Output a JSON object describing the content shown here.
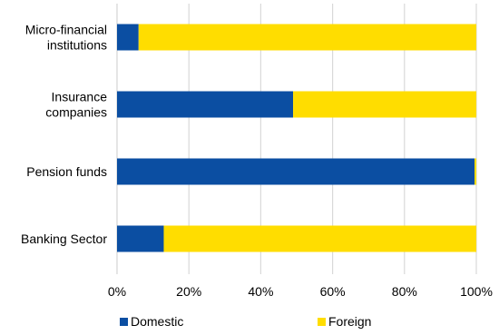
{
  "chart_data": {
    "type": "bar",
    "orientation": "horizontal",
    "stacked": true,
    "percent_stacked": true,
    "title": "",
    "xlabel": "",
    "ylabel": "",
    "categories": [
      "Micro-financial institutions",
      "Insurance companies",
      "Pension funds",
      "Banking Sector"
    ],
    "category_label_lines": [
      [
        "Micro-financial",
        "institutions"
      ],
      [
        "Insurance",
        "companies"
      ],
      [
        "Pension funds"
      ],
      [
        "Banking Sector"
      ]
    ],
    "series": [
      {
        "name": "Domestic",
        "color": "#0b4ea2",
        "values": [
          6,
          49,
          99.5,
          13
        ]
      },
      {
        "name": "Foreign",
        "color": "#ffdd00",
        "values": [
          94,
          51,
          0.5,
          87
        ]
      }
    ],
    "xlim": [
      0,
      100
    ],
    "x_ticks": [
      0,
      20,
      40,
      60,
      80,
      100
    ],
    "x_tick_labels": [
      "0%",
      "20%",
      "40%",
      "60%",
      "80%",
      "100%"
    ],
    "grid": "vertical",
    "legend_position": "bottom"
  }
}
